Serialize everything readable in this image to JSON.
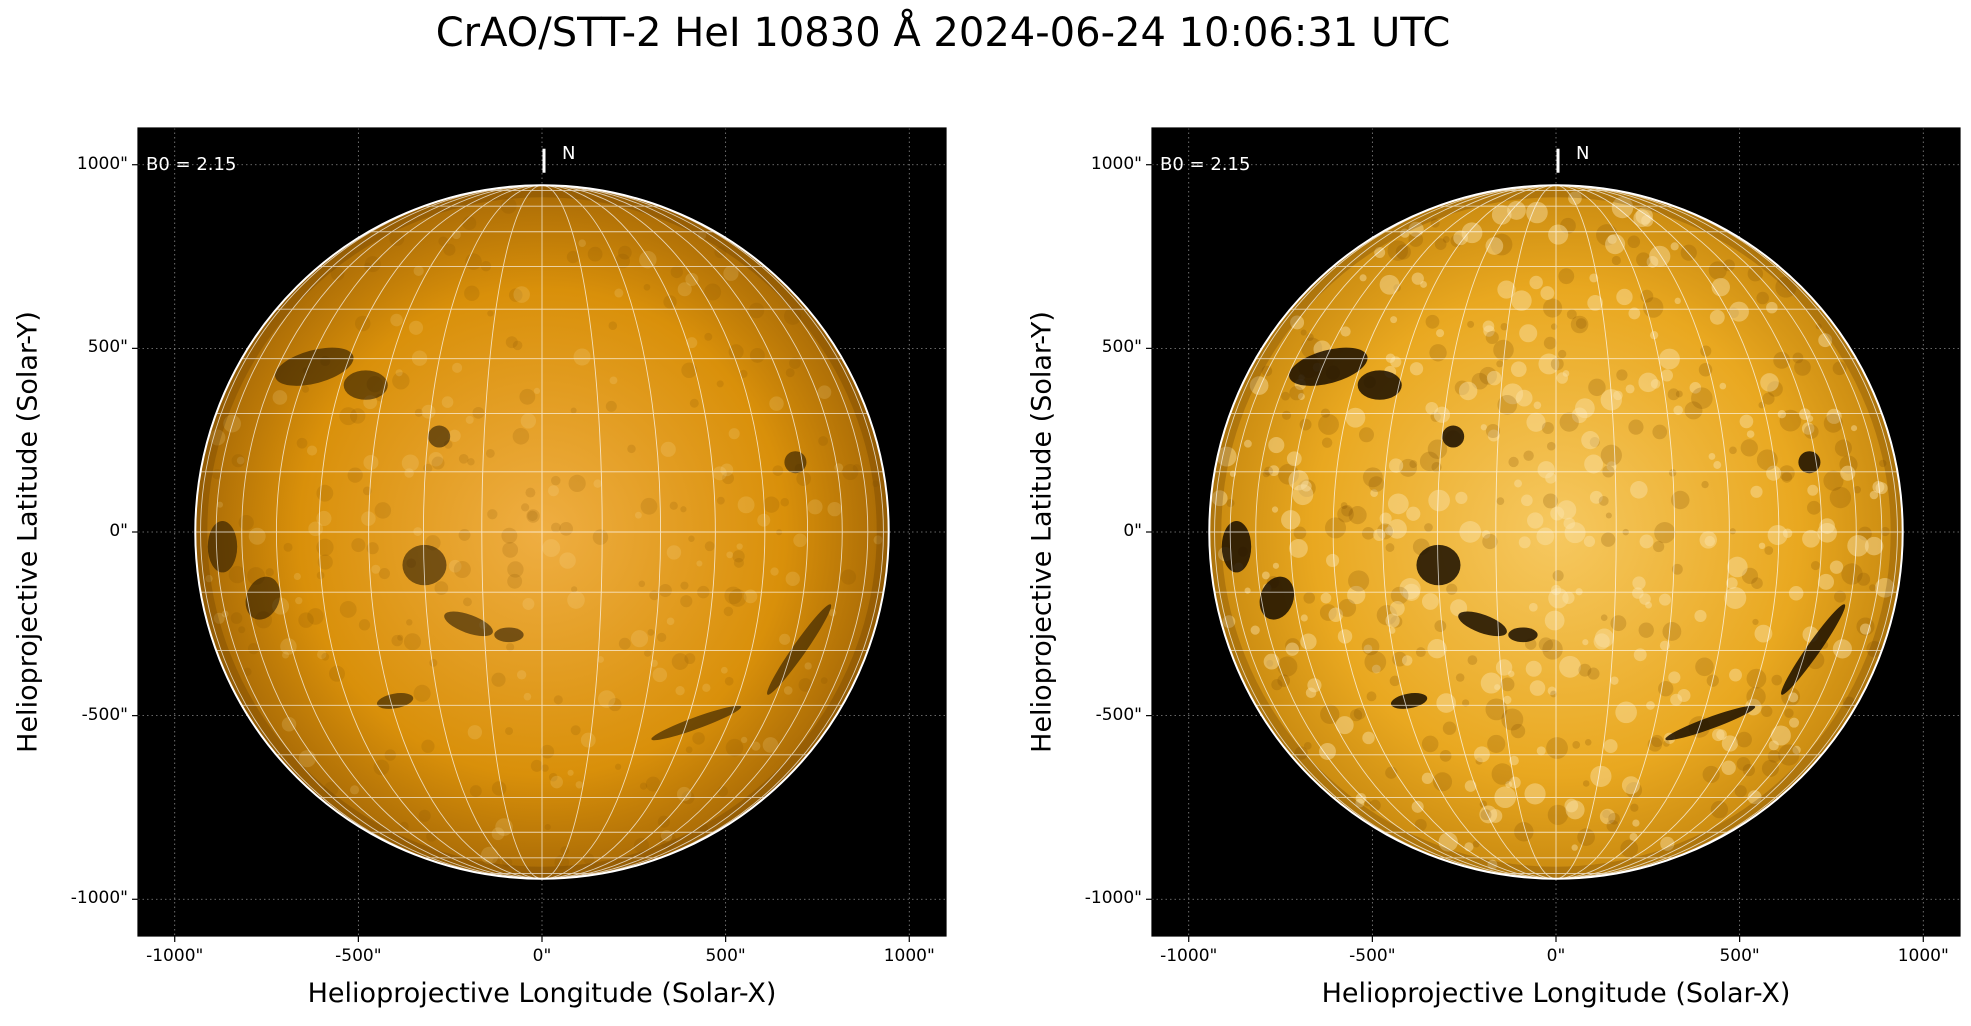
{
  "title": "CrAO/STT-2 HeI 10830 Å 2024-06-24 10:06:31 UTC",
  "colors": {
    "disk_left": "#d9900a",
    "disk_right": "#e9a820",
    "limb": "#ffffff",
    "background": "#000000",
    "filament": "#1a0e00",
    "plage": "#fbe3a8"
  },
  "panels": [
    {
      "id": "left",
      "xlabel": "Helioprojective Longitude (Solar-X)",
      "ylabel": "Helioprojective Latitude (Solar-Y)",
      "b0_label": "B0 = 2.15",
      "north_label": "N",
      "x_ticks": [
        "-1000\"",
        "-500\"",
        "0\"",
        "500\"",
        "1000\""
      ],
      "y_ticks": [
        "1000\"",
        "500\"",
        "0\"",
        "-500\"",
        "-1000\""
      ],
      "x_tick_values": [
        -1000,
        -500,
        0,
        500,
        1000
      ],
      "y_tick_values": [
        1000,
        500,
        0,
        -500,
        -1000
      ],
      "xlim": [
        -1100,
        1100
      ],
      "ylim": [
        -1100,
        1100
      ],
      "disk_radius": 944,
      "contrast": "normal"
    },
    {
      "id": "right",
      "xlabel": "Helioprojective Longitude (Solar-X)",
      "ylabel": "Helioprojective Latitude (Solar-Y)",
      "b0_label": "B0 = 2.15",
      "north_label": "N",
      "x_ticks": [
        "-1000\"",
        "-500\"",
        "0\"",
        "500\"",
        "1000\""
      ],
      "y_ticks": [
        "1000\"",
        "500\"",
        "0\"",
        "-500\"",
        "-1000\""
      ],
      "x_tick_values": [
        -1000,
        -500,
        0,
        500,
        1000
      ],
      "y_tick_values": [
        1000,
        500,
        0,
        -500,
        -1000
      ],
      "xlim": [
        -1100,
        1100
      ],
      "ylim": [
        -1100,
        1100
      ],
      "disk_radius": 944,
      "contrast": "enhanced"
    }
  ],
  "features": {
    "filaments": [
      {
        "x": -620,
        "y": 450,
        "rx": 110,
        "ry": 45,
        "rot": -15
      },
      {
        "x": -480,
        "y": 400,
        "rx": 60,
        "ry": 40,
        "rot": 0
      },
      {
        "x": -280,
        "y": 260,
        "rx": 30,
        "ry": 30,
        "rot": 0
      },
      {
        "x": -320,
        "y": -90,
        "rx": 60,
        "ry": 55,
        "rot": 0
      },
      {
        "x": -870,
        "y": -40,
        "rx": 40,
        "ry": 70,
        "rot": 0
      },
      {
        "x": -760,
        "y": -180,
        "rx": 45,
        "ry": 60,
        "rot": 20
      },
      {
        "x": -200,
        "y": -250,
        "rx": 70,
        "ry": 25,
        "rot": 20
      },
      {
        "x": -90,
        "y": -280,
        "rx": 40,
        "ry": 20,
        "rot": 0
      },
      {
        "x": -400,
        "y": -460,
        "rx": 50,
        "ry": 20,
        "rot": -10
      },
      {
        "x": 700,
        "y": -320,
        "rx": 150,
        "ry": 18,
        "rot": -55
      },
      {
        "x": 420,
        "y": -520,
        "rx": 130,
        "ry": 16,
        "rot": -20
      },
      {
        "x": 690,
        "y": 190,
        "rx": 30,
        "ry": 30,
        "rot": 0
      }
    ]
  }
}
